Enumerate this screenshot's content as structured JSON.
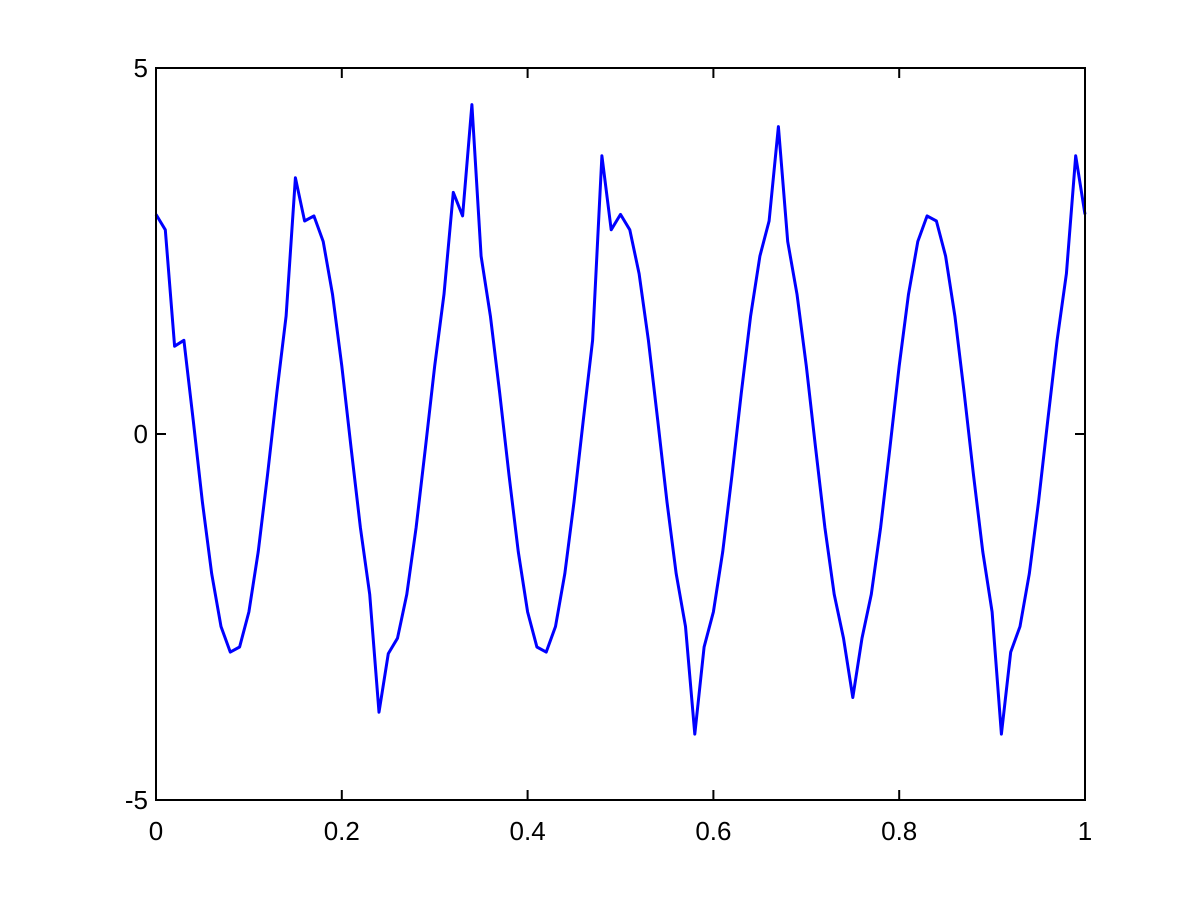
{
  "chart_data": {
    "type": "line",
    "x": [
      0,
      0.01,
      0.02,
      0.03,
      0.04,
      0.05,
      0.06,
      0.07,
      0.08,
      0.09,
      0.1,
      0.11,
      0.12,
      0.13,
      0.14,
      0.15,
      0.16,
      0.17,
      0.18,
      0.19,
      0.2,
      0.21,
      0.22,
      0.23,
      0.24,
      0.25,
      0.26,
      0.27,
      0.28,
      0.29,
      0.3,
      0.31,
      0.32,
      0.33,
      0.34,
      0.35,
      0.36,
      0.37,
      0.38,
      0.39,
      0.4,
      0.41,
      0.42,
      0.43,
      0.44,
      0.45,
      0.46,
      0.47,
      0.48,
      0.49,
      0.5,
      0.51,
      0.52,
      0.53,
      0.54,
      0.55,
      0.56,
      0.57,
      0.58,
      0.59,
      0.6,
      0.61,
      0.62,
      0.63,
      0.64,
      0.65,
      0.66,
      0.67,
      0.68,
      0.69,
      0.7,
      0.71,
      0.72,
      0.73,
      0.74,
      0.75,
      0.76,
      0.77,
      0.78,
      0.79,
      0.8,
      0.81,
      0.82,
      0.83,
      0.84,
      0.85,
      0.86,
      0.87,
      0.88,
      0.89,
      0.9,
      0.91,
      0.92,
      0.93,
      0.94,
      0.95,
      0.96,
      0.97,
      0.98,
      0.99,
      1
    ],
    "series": [
      {
        "color": "#0000ff",
        "values": [
          3,
          2.79,
          1.2,
          1.28,
          0.19,
          -0.93,
          -1.91,
          -2.63,
          -2.98,
          -2.91,
          -2.43,
          -1.61,
          -0.56,
          0.56,
          1.61,
          3.5,
          2.91,
          2.98,
          2.63,
          1.91,
          0.93,
          -0.19,
          -1.28,
          -2.19,
          -3.8,
          -3,
          -2.79,
          -2.19,
          -1.28,
          -0.19,
          0.93,
          1.91,
          3.3,
          2.98,
          4.5,
          2.43,
          1.61,
          0.56,
          -0.56,
          -1.61,
          -2.43,
          -2.91,
          -2.98,
          -2.63,
          -1.91,
          -0.93,
          0.19,
          1.28,
          3.8,
          2.79,
          3,
          2.79,
          2.19,
          1.28,
          0.19,
          -0.93,
          -1.91,
          -2.63,
          -4.1,
          -2.91,
          -2.43,
          -1.61,
          -0.56,
          0.56,
          1.61,
          2.43,
          2.91,
          4.2,
          2.63,
          1.91,
          0.93,
          -0.19,
          -1.28,
          -2.19,
          -2.79,
          -3.6,
          -2.79,
          -2.19,
          -1.28,
          -0.19,
          0.93,
          1.91,
          2.63,
          2.98,
          2.91,
          2.43,
          1.61,
          0.56,
          -0.56,
          -1.61,
          -2.43,
          -4.1,
          -2.98,
          -2.63,
          -1.91,
          -0.93,
          0.19,
          1.28,
          2.19,
          3.8,
          3
        ]
      }
    ],
    "xlim": [
      0,
      1
    ],
    "xticks": [
      0,
      0.2,
      0.4,
      0.6,
      0.8,
      1
    ],
    "ylim": [
      -5,
      5
    ],
    "yticks": [
      -5,
      0,
      5
    ]
  }
}
